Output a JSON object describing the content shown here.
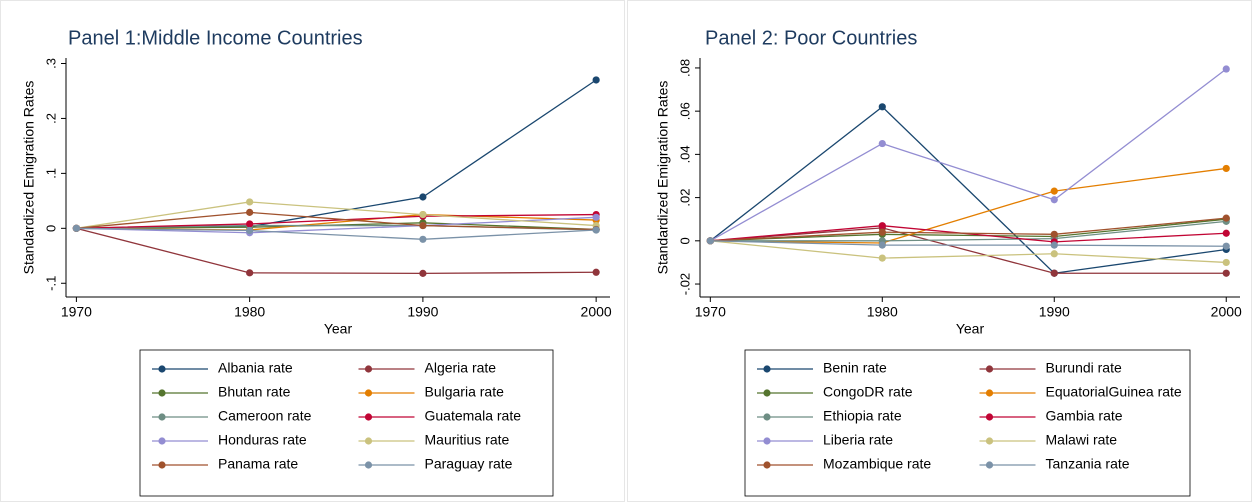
{
  "chart_data": [
    {
      "type": "line",
      "title": "Panel 1:Middle Income Countries",
      "x_label": "Year",
      "y_label": "Standardized Emigration Rates",
      "x": [
        1970,
        1980,
        1990,
        2000
      ],
      "xlim": [
        1969.4,
        2000.8
      ],
      "xticks": [
        1970,
        1980,
        1990,
        2000
      ],
      "ylim": [
        -0.125,
        0.31
      ],
      "yticks": [
        {
          "value": -0.1,
          "label": "-.1"
        },
        0,
        {
          "value": 0.1,
          "label": ".1"
        },
        {
          "value": 0.2,
          "label": ".2"
        },
        {
          "value": 0.3,
          "label": ".3"
        }
      ],
      "legend": "bottom",
      "series": [
        {
          "name": "Albania rate",
          "color": "#1a476f",
          "values": [
            0,
            0.003,
            0.057,
            0.27
          ]
        },
        {
          "name": "Algeria rate",
          "color": "#90353b",
          "values": [
            0,
            -0.081,
            -0.082,
            -0.08
          ]
        },
        {
          "name": "Bhutan rate",
          "color": "#55752f",
          "values": [
            0,
            0.002,
            0.01,
            -0.002
          ]
        },
        {
          "name": "Bulgaria rate",
          "color": "#e37e00",
          "values": [
            0,
            -0.003,
            0.025,
            0.015
          ]
        },
        {
          "name": "Cameroon rate",
          "color": "#6e8e84",
          "values": [
            0,
            0.005,
            0.005,
            -0.003
          ]
        },
        {
          "name": "Guatemala rate",
          "color": "#c10534",
          "values": [
            0,
            0.008,
            0.022,
            0.025
          ]
        },
        {
          "name": "Honduras rate",
          "color": "#938dd2",
          "values": [
            0,
            -0.008,
            0.005,
            0.02
          ]
        },
        {
          "name": "Mauritius rate",
          "color": "#cac27e",
          "values": [
            0,
            0.048,
            0.025,
            0.005
          ]
        },
        {
          "name": "Panama rate",
          "color": "#a0522d",
          "values": [
            0,
            0.029,
            0.005,
            -0.002
          ]
        },
        {
          "name": "Paraguay rate",
          "color": "#7b92a8",
          "values": [
            0,
            -0.004,
            -0.02,
            -0.003
          ]
        }
      ]
    },
    {
      "type": "line",
      "title": "Panel 2: Poor Countries",
      "x_label": "Year",
      "y_label": "Standardized Emigration Rates",
      "x": [
        1970,
        1980,
        1990,
        2000
      ],
      "xlim": [
        1969.4,
        2000.8
      ],
      "xticks": [
        1970,
        1980,
        1990,
        2000
      ],
      "ylim": [
        -0.026,
        0.0846
      ],
      "yticks": [
        {
          "value": -0.02,
          "label": "-.02"
        },
        0,
        {
          "value": 0.02,
          "label": ".02"
        },
        {
          "value": 0.04,
          "label": ".04"
        },
        {
          "value": 0.06,
          "label": ".06"
        },
        {
          "value": 0.08,
          "label": ".08"
        }
      ],
      "legend": "bottom",
      "series": [
        {
          "name": "Benin rate",
          "color": "#1a476f",
          "values": [
            0,
            0.062,
            -0.015,
            -0.004
          ]
        },
        {
          "name": "Burundi rate",
          "color": "#90353b",
          "values": [
            0,
            0.006,
            -0.015,
            -0.015
          ]
        },
        {
          "name": "CongoDR rate",
          "color": "#55752f",
          "values": [
            0,
            0.003,
            0.002,
            0.01
          ]
        },
        {
          "name": "EquatorialGuinea rate",
          "color": "#e37e00",
          "values": [
            0,
            -0.001,
            0.023,
            0.0335
          ]
        },
        {
          "name": "Ethiopia rate",
          "color": "#6e8e84",
          "values": [
            0,
            0.0,
            0.001,
            0.009
          ]
        },
        {
          "name": "Gambia rate",
          "color": "#c10534",
          "values": [
            0,
            0.007,
            -0.0005,
            0.0035
          ]
        },
        {
          "name": "Liberia rate",
          "color": "#938dd2",
          "values": [
            0,
            0.045,
            0.019,
            0.0795
          ]
        },
        {
          "name": "Malawi rate",
          "color": "#cac27e",
          "values": [
            0,
            -0.008,
            -0.006,
            -0.01
          ]
        },
        {
          "name": "Mozambique rate",
          "color": "#a0522d",
          "values": [
            0,
            0.004,
            0.003,
            0.0105
          ]
        },
        {
          "name": "Tanzania rate",
          "color": "#7b92a8",
          "values": [
            0,
            -0.002,
            -0.002,
            -0.0025
          ]
        }
      ]
    }
  ]
}
